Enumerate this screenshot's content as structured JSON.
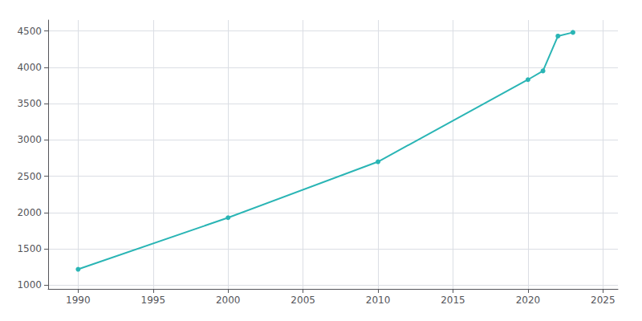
{
  "chart_data": {
    "type": "line",
    "x": [
      1990,
      2000,
      2010,
      2020,
      2021,
      2022,
      2023
    ],
    "values": [
      1220,
      1930,
      2700,
      3830,
      3950,
      4430,
      4480
    ],
    "color": "#2ab5b5",
    "marker": "circle",
    "xlim": [
      1988,
      2026
    ],
    "ylim": [
      950,
      4650
    ],
    "xticks": [
      1990,
      1995,
      2000,
      2005,
      2010,
      2015,
      2020,
      2025
    ],
    "yticks": [
      1000,
      1500,
      2000,
      2500,
      3000,
      3500,
      4000,
      4500
    ],
    "grid": true
  }
}
